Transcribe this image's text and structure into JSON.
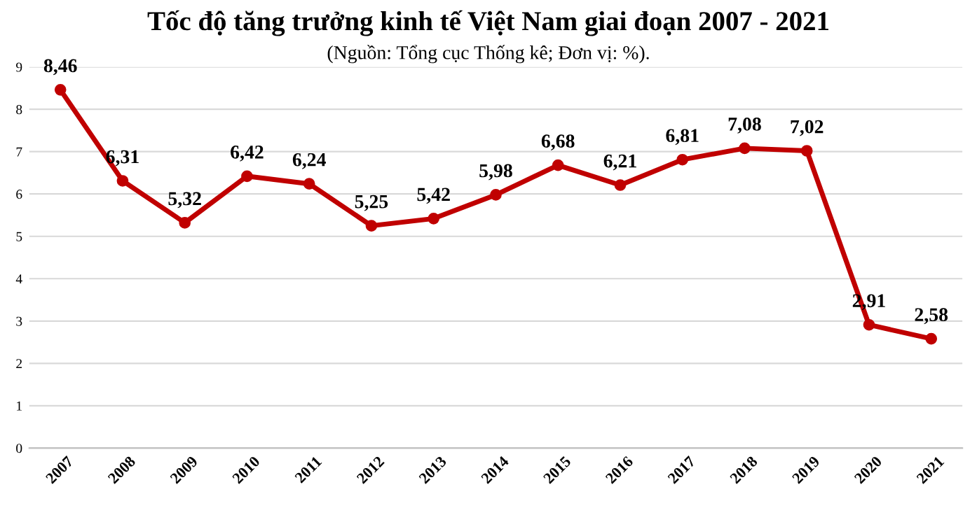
{
  "chart_data": {
    "type": "line",
    "title": "Tốc độ tăng trưởng kinh tế Việt Nam giai đoạn 2007 - 2021",
    "subtitle": "(Nguồn: Tổng cục Thống kê; Đơn vị: %).",
    "categories": [
      "2007",
      "2008",
      "2009",
      "2010",
      "2011",
      "2012",
      "2013",
      "2014",
      "2015",
      "2016",
      "2017",
      "2018",
      "2019",
      "2020",
      "2021"
    ],
    "series": [
      {
        "color": "#c00000",
        "values": [
          8.46,
          6.31,
          5.32,
          6.42,
          6.24,
          5.25,
          5.42,
          5.98,
          6.68,
          6.21,
          6.81,
          7.08,
          7.02,
          2.91,
          2.58
        ],
        "value_labels": [
          "8,46",
          "6,31",
          "5,32",
          "6,42",
          "6,24",
          "5,25",
          "5,42",
          "5,98",
          "6,68",
          "6,21",
          "6,81",
          "7,08",
          "7,02",
          "2,91",
          "2,58"
        ]
      }
    ],
    "ylim": [
      0,
      9
    ],
    "yticks": [
      0,
      1,
      2,
      3,
      4,
      5,
      6,
      7,
      8,
      9
    ],
    "grid": "y",
    "marker": "circle",
    "line_style": "solid",
    "legend": false
  }
}
